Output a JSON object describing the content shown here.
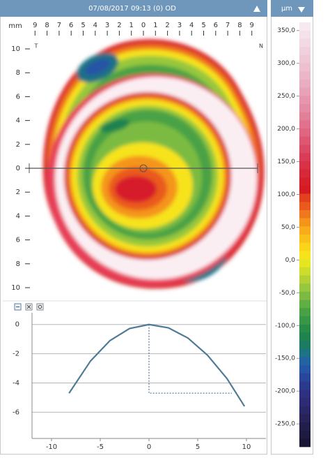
{
  "header": {
    "title": "07/08/2017 09:13 (0) OD"
  },
  "map": {
    "unit": "mm",
    "left_label": "T",
    "right_label": "N",
    "xlim": [
      -10,
      10
    ],
    "ylim": [
      -10,
      10
    ],
    "xticks": [
      {
        "value": -9,
        "label": "9"
      },
      {
        "value": -8,
        "label": "8"
      },
      {
        "value": -7,
        "label": "7"
      },
      {
        "value": -6,
        "label": "6"
      },
      {
        "value": -5,
        "label": "5"
      },
      {
        "value": -4,
        "label": "4"
      },
      {
        "value": -3,
        "label": "3"
      },
      {
        "value": -2,
        "label": "2"
      },
      {
        "value": -1,
        "label": "1"
      },
      0,
      1,
      2,
      3,
      4,
      5,
      6,
      7,
      8,
      9
    ],
    "yticks": [
      10,
      8,
      6,
      4,
      2,
      0,
      {
        "value": -2,
        "label": "2"
      },
      {
        "value": -4,
        "label": "4"
      },
      {
        "value": -6,
        "label": "6"
      },
      {
        "value": -8,
        "label": "8"
      },
      {
        "value": -10,
        "label": "10"
      }
    ]
  },
  "colorbar": {
    "unit": "µm",
    "lim": [
      362.5,
      -285
    ],
    "ticks": [
      {
        "value": 350,
        "label": "350,0"
      },
      {
        "value": 300,
        "label": "300,0"
      },
      {
        "value": 250,
        "label": "250,0"
      },
      {
        "value": 200,
        "label": "200,0"
      },
      {
        "value": 150,
        "label": "150,0"
      },
      {
        "value": 100,
        "label": "100,0"
      },
      {
        "value": 50,
        "label": "50,0"
      },
      {
        "value": 0,
        "label": "0,0"
      },
      {
        "value": -50,
        "label": "-50,0"
      },
      {
        "value": -100,
        "label": "-100,0"
      },
      {
        "value": -150,
        "label": "-150,0"
      },
      {
        "value": -200,
        "label": "-200,0"
      },
      {
        "value": -250,
        "label": "-250,0"
      }
    ],
    "colors": [
      "#f7e9f0",
      "#f5e1ea",
      "#f3d9e4",
      "#f1d0dd",
      "#efc8d6",
      "#edbfcf",
      "#ebb6c8",
      "#e9acc0",
      "#e7a2b8",
      "#e697ae",
      "#e48ca4",
      "#e27f99",
      "#e1728d",
      "#df6580",
      "#dd5773",
      "#db4a65",
      "#d93c56",
      "#d83246",
      "#d72838",
      "#d61f2b",
      "#d51a20",
      "#e2401f",
      "#ea5a1e",
      "#f0781c",
      "#f4951b",
      "#f7ac1a",
      "#f9c01a",
      "#fbd31b",
      "#f7e31c",
      "#e6e620",
      "#cedc2c",
      "#b3d136",
      "#97c73d",
      "#7bbb42",
      "#60ae44",
      "#48a245",
      "#369746",
      "#288c48",
      "#1f834f",
      "#1c7c62",
      "#1e7285",
      "#2263a0",
      "#2555a5",
      "#29469a",
      "#2c3a8d",
      "#2e3181",
      "#2d2b74",
      "#2a2766",
      "#262358",
      "#211e4b",
      "#1c1a3f",
      "#181634"
    ]
  },
  "chart_data": {
    "type": "line",
    "x": [
      -8.2,
      -6,
      -4,
      -2,
      0,
      2,
      4,
      6,
      8,
      9.8
    ],
    "series": [
      {
        "color": "#4f7a96",
        "values": [
          -4.7,
          -2.5,
          -1.1,
          -0.28,
          0,
          -0.23,
          -0.93,
          -2.1,
          -3.7,
          -5.6
        ]
      }
    ],
    "guide": {
      "x": [
        0,
        0,
        8.5
      ],
      "y": [
        0,
        -4.7,
        -4.7
      ],
      "color": "#2f5f8a"
    },
    "xlim": [
      -12,
      12
    ],
    "ylim": [
      -7.8,
      0.8
    ],
    "xticks": [
      -10,
      -5,
      0,
      5,
      10
    ],
    "yticks": [
      0,
      -2,
      -4,
      -6
    ],
    "grid": true
  }
}
